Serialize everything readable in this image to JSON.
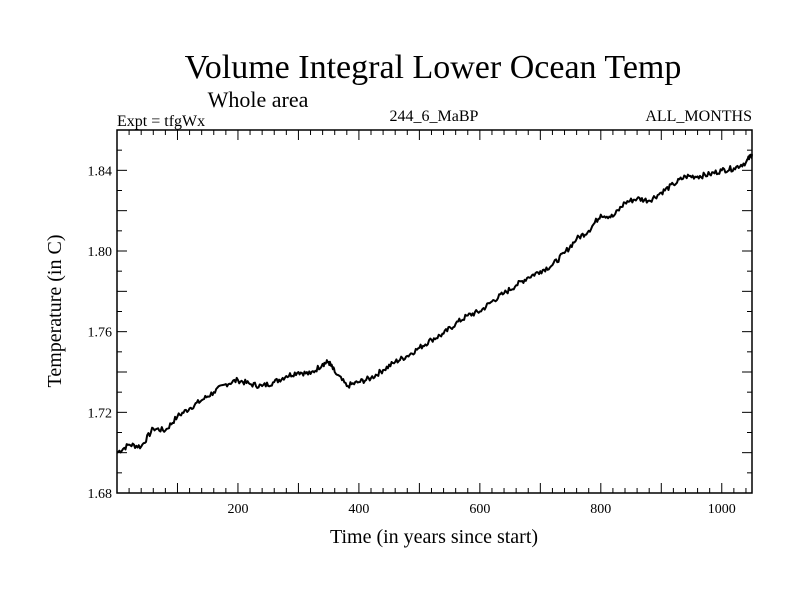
{
  "chart_data": {
    "type": "line",
    "title": "Volume Integral Lower Ocean Temp",
    "subtitle": "Whole area",
    "left_label": "Expt = tfgWx",
    "center_label": "244_6_MaBP",
    "right_label": "ALL_MONTHS",
    "xlabel": "Time (in years since start)",
    "ylabel": "Temperature (in C)",
    "xlim": [
      0,
      1050
    ],
    "ylim": [
      1.68,
      1.86
    ],
    "xticks": [
      200,
      400,
      600,
      800,
      1000
    ],
    "xtick_labels": [
      "200",
      "400",
      "600",
      "800",
      "1000"
    ],
    "yticks": [
      1.68,
      1.72,
      1.76,
      1.8,
      1.84
    ],
    "ytick_labels": [
      "1.68",
      "1.72",
      "1.76",
      "1.80",
      "1.84"
    ],
    "series": [
      {
        "name": "temperature",
        "x": [
          0,
          20,
          40,
          60,
          80,
          100,
          120,
          140,
          160,
          180,
          200,
          220,
          240,
          260,
          280,
          300,
          320,
          340,
          350,
          360,
          380,
          400,
          420,
          440,
          460,
          480,
          500,
          520,
          540,
          560,
          580,
          600,
          620,
          640,
          660,
          680,
          700,
          720,
          740,
          760,
          780,
          800,
          820,
          840,
          860,
          880,
          900,
          920,
          940,
          960,
          980,
          1000,
          1020,
          1040,
          1050
        ],
        "y": [
          1.7,
          1.704,
          1.703,
          1.712,
          1.711,
          1.718,
          1.722,
          1.726,
          1.73,
          1.734,
          1.736,
          1.734,
          1.733,
          1.735,
          1.738,
          1.74,
          1.739,
          1.744,
          1.745,
          1.74,
          1.733,
          1.735,
          1.737,
          1.741,
          1.745,
          1.748,
          1.752,
          1.756,
          1.759,
          1.764,
          1.768,
          1.77,
          1.775,
          1.779,
          1.783,
          1.787,
          1.79,
          1.793,
          1.799,
          1.806,
          1.81,
          1.818,
          1.817,
          1.824,
          1.826,
          1.825,
          1.829,
          1.833,
          1.837,
          1.837,
          1.838,
          1.84,
          1.841,
          1.844,
          1.848
        ]
      }
    ]
  }
}
